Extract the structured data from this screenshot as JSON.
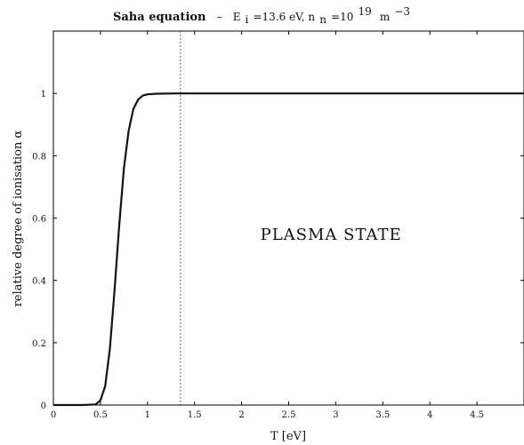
{
  "chart_data": {
    "type": "line",
    "title_main": "Saha equation",
    "title_dash": "–",
    "title_energy_label": "E",
    "title_energy_sub": "i",
    "title_energy_value": "=13.6 eV, n",
    "title_density_sub": "n",
    "title_density_base": "=10",
    "title_density_exp": "19",
    "title_unit": "m",
    "title_unit_exp": "−3",
    "xlabel": "T [eV]",
    "ylabel": "relative degree of ionisation α",
    "xlim": [
      0,
      5
    ],
    "ylim": [
      0,
      1.2
    ],
    "x_ticks": [
      0,
      0.5,
      1,
      1.5,
      2,
      2.5,
      3,
      3.5,
      4,
      4.5
    ],
    "x_tick_labels": [
      "0",
      "0.5",
      "1",
      "1.5",
      "2",
      "2.5",
      "3",
      "3.5",
      "4",
      "4.5"
    ],
    "y_ticks": [
      0,
      0.2,
      0.4,
      0.6,
      0.8,
      1
    ],
    "y_tick_labels": [
      "0",
      "0.2",
      "0.4",
      "0.6",
      "0.8",
      "1"
    ],
    "grid": false,
    "series": [
      {
        "x": [
          0,
          0.3,
          0.45,
          0.5,
          0.55,
          0.6,
          0.65,
          0.7,
          0.75,
          0.8,
          0.85,
          0.9,
          0.95,
          1.0,
          1.1,
          1.3,
          1.6,
          2.0,
          3.0,
          4.0,
          5.0
        ],
        "y": [
          0,
          0,
          0.002,
          0.015,
          0.06,
          0.18,
          0.37,
          0.58,
          0.76,
          0.88,
          0.95,
          0.98,
          0.993,
          0.997,
          0.999,
          1.0,
          1.0,
          1.0,
          1.0,
          1.0,
          1.0
        ]
      }
    ],
    "vline_x": 1.35,
    "annotation": {
      "text": "PLASMA  STATE",
      "x": 2.95,
      "y": 0.53
    }
  }
}
